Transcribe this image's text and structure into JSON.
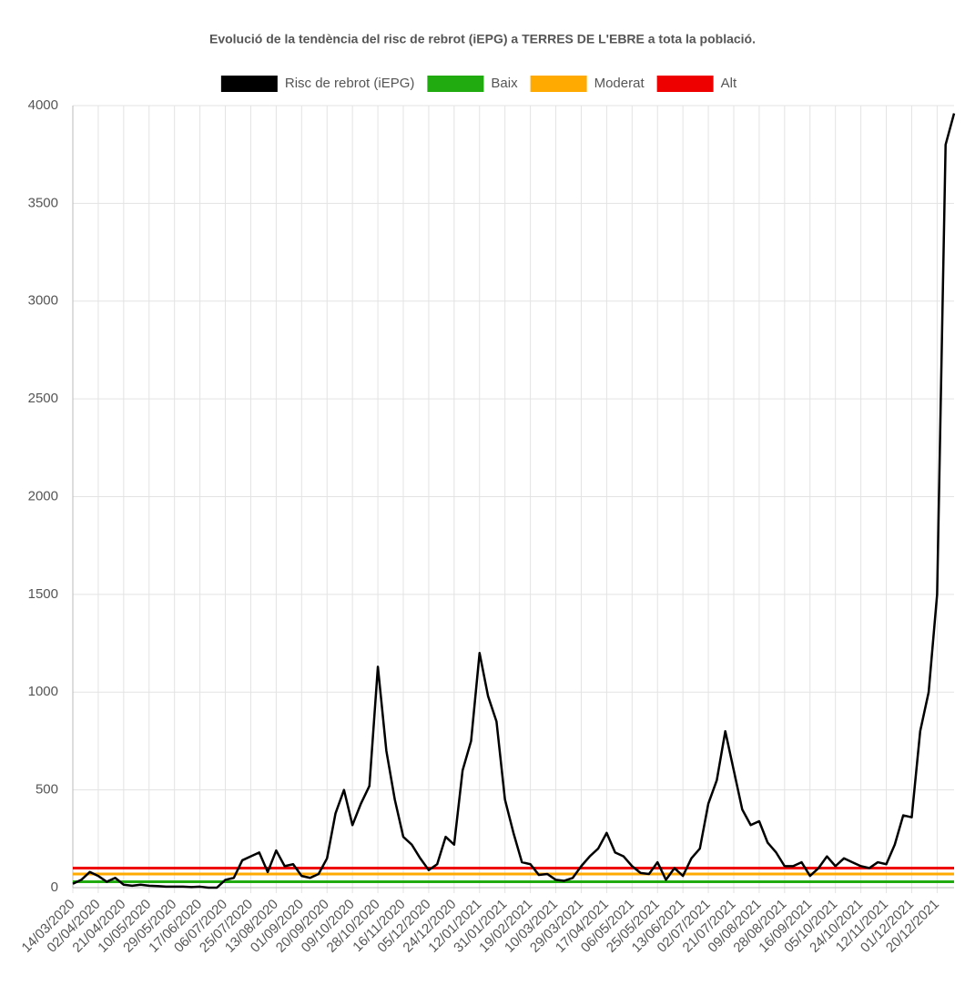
{
  "chart_data": {
    "type": "line",
    "title": "Evolució de la tendència del risc de rebrot (iEPG) a TERRES DE L'EBRE a tota la població.",
    "categories": [
      "14/03/2020",
      null,
      null,
      "02/04/2020",
      null,
      null,
      "21/04/2020",
      null,
      null,
      "10/05/2020",
      null,
      null,
      "29/05/2020",
      null,
      null,
      "17/06/2020",
      null,
      null,
      "06/07/2020",
      null,
      null,
      "25/07/2020",
      null,
      null,
      "13/08/2020",
      null,
      null,
      "01/09/2020",
      null,
      null,
      "20/09/2020",
      null,
      null,
      "09/10/2020",
      null,
      null,
      "28/10/2020",
      null,
      null,
      "16/11/2020",
      null,
      null,
      "05/12/2020",
      null,
      null,
      "24/12/2020",
      null,
      null,
      "12/01/2021",
      null,
      null,
      "31/01/2021",
      null,
      null,
      "19/02/2021",
      null,
      null,
      "10/03/2021",
      null,
      null,
      "29/03/2021",
      null,
      null,
      "17/04/2021",
      null,
      null,
      "06/05/2021",
      null,
      null,
      "25/05/2021",
      null,
      null,
      "13/06/2021",
      null,
      null,
      "02/07/2021",
      null,
      null,
      "21/07/2021",
      null,
      null,
      "09/08/2021",
      null,
      null,
      "28/08/2021",
      null,
      null,
      "16/09/2021",
      null,
      null,
      "05/10/2021",
      null,
      null,
      "24/10/2021",
      null,
      null,
      "12/11/2021",
      null,
      null,
      "01/12/2021",
      null,
      null,
      "20/12/2021",
      null,
      null
    ],
    "series": [
      {
        "name": "Risc de rebrot (iEPG)",
        "color": "#000000",
        "values": [
          20,
          40,
          80,
          60,
          30,
          50,
          15,
          10,
          15,
          10,
          8,
          5,
          5,
          5,
          3,
          5,
          0,
          0,
          40,
          50,
          140,
          160,
          180,
          80,
          190,
          110,
          120,
          60,
          50,
          70,
          150,
          380,
          500,
          320,
          430,
          520,
          1130,
          700,
          450,
          260,
          220,
          150,
          90,
          120,
          260,
          220,
          600,
          750,
          1200,
          980,
          850,
          450,
          280,
          130,
          120,
          65,
          70,
          40,
          35,
          50,
          110,
          160,
          200,
          280,
          180,
          160,
          110,
          75,
          70,
          130,
          40,
          100,
          60,
          150,
          200,
          430,
          550,
          800,
          600,
          400,
          320,
          340,
          230,
          180,
          110,
          110,
          130,
          60,
          100,
          160,
          110,
          150,
          130,
          110,
          100,
          130,
          120,
          220,
          370,
          360,
          800,
          1000,
          1500,
          3800,
          3960
        ]
      },
      {
        "name": "Baix",
        "color": "#22aa11",
        "values": [
          30,
          30,
          30,
          30,
          30,
          30,
          30,
          30,
          30,
          30,
          30,
          30,
          30,
          30,
          30,
          30,
          30,
          30,
          30,
          30,
          30,
          30,
          30,
          30,
          30,
          30,
          30,
          30,
          30,
          30,
          30,
          30,
          30,
          30,
          30,
          30,
          30,
          30,
          30,
          30,
          30,
          30,
          30,
          30,
          30,
          30,
          30,
          30,
          30,
          30,
          30,
          30,
          30,
          30,
          30,
          30,
          30,
          30,
          30,
          30,
          30,
          30,
          30,
          30,
          30,
          30,
          30,
          30,
          30,
          30,
          30,
          30,
          30,
          30,
          30,
          30,
          30,
          30,
          30,
          30,
          30,
          30,
          30,
          30,
          30,
          30,
          30,
          30,
          30,
          30,
          30,
          30,
          30,
          30,
          30,
          30,
          30,
          30,
          30,
          30,
          30,
          30,
          30,
          30,
          30
        ]
      },
      {
        "name": "Moderat",
        "color": "#ffaa00",
        "values": [
          70,
          70,
          70,
          70,
          70,
          70,
          70,
          70,
          70,
          70,
          70,
          70,
          70,
          70,
          70,
          70,
          70,
          70,
          70,
          70,
          70,
          70,
          70,
          70,
          70,
          70,
          70,
          70,
          70,
          70,
          70,
          70,
          70,
          70,
          70,
          70,
          70,
          70,
          70,
          70,
          70,
          70,
          70,
          70,
          70,
          70,
          70,
          70,
          70,
          70,
          70,
          70,
          70,
          70,
          70,
          70,
          70,
          70,
          70,
          70,
          70,
          70,
          70,
          70,
          70,
          70,
          70,
          70,
          70,
          70,
          70,
          70,
          70,
          70,
          70,
          70,
          70,
          70,
          70,
          70,
          70,
          70,
          70,
          70,
          70,
          70,
          70,
          70,
          70,
          70,
          70,
          70,
          70,
          70,
          70,
          70,
          70,
          70,
          70,
          70,
          70,
          70,
          70,
          70,
          70
        ]
      },
      {
        "name": "Alt",
        "color": "#ee0000",
        "values": [
          100,
          100,
          100,
          100,
          100,
          100,
          100,
          100,
          100,
          100,
          100,
          100,
          100,
          100,
          100,
          100,
          100,
          100,
          100,
          100,
          100,
          100,
          100,
          100,
          100,
          100,
          100,
          100,
          100,
          100,
          100,
          100,
          100,
          100,
          100,
          100,
          100,
          100,
          100,
          100,
          100,
          100,
          100,
          100,
          100,
          100,
          100,
          100,
          100,
          100,
          100,
          100,
          100,
          100,
          100,
          100,
          100,
          100,
          100,
          100,
          100,
          100,
          100,
          100,
          100,
          100,
          100,
          100,
          100,
          100,
          100,
          100,
          100,
          100,
          100,
          100,
          100,
          100,
          100,
          100,
          100,
          100,
          100,
          100,
          100,
          100,
          100,
          100,
          100,
          100,
          100,
          100,
          100,
          100,
          100,
          100,
          100,
          100,
          100,
          100,
          100,
          100,
          100,
          100,
          100
        ]
      }
    ],
    "ylim": [
      0,
      4000
    ],
    "yticks": [
      0,
      500,
      1000,
      1500,
      2000,
      2500,
      3000,
      3500,
      4000
    ],
    "grid": true
  }
}
